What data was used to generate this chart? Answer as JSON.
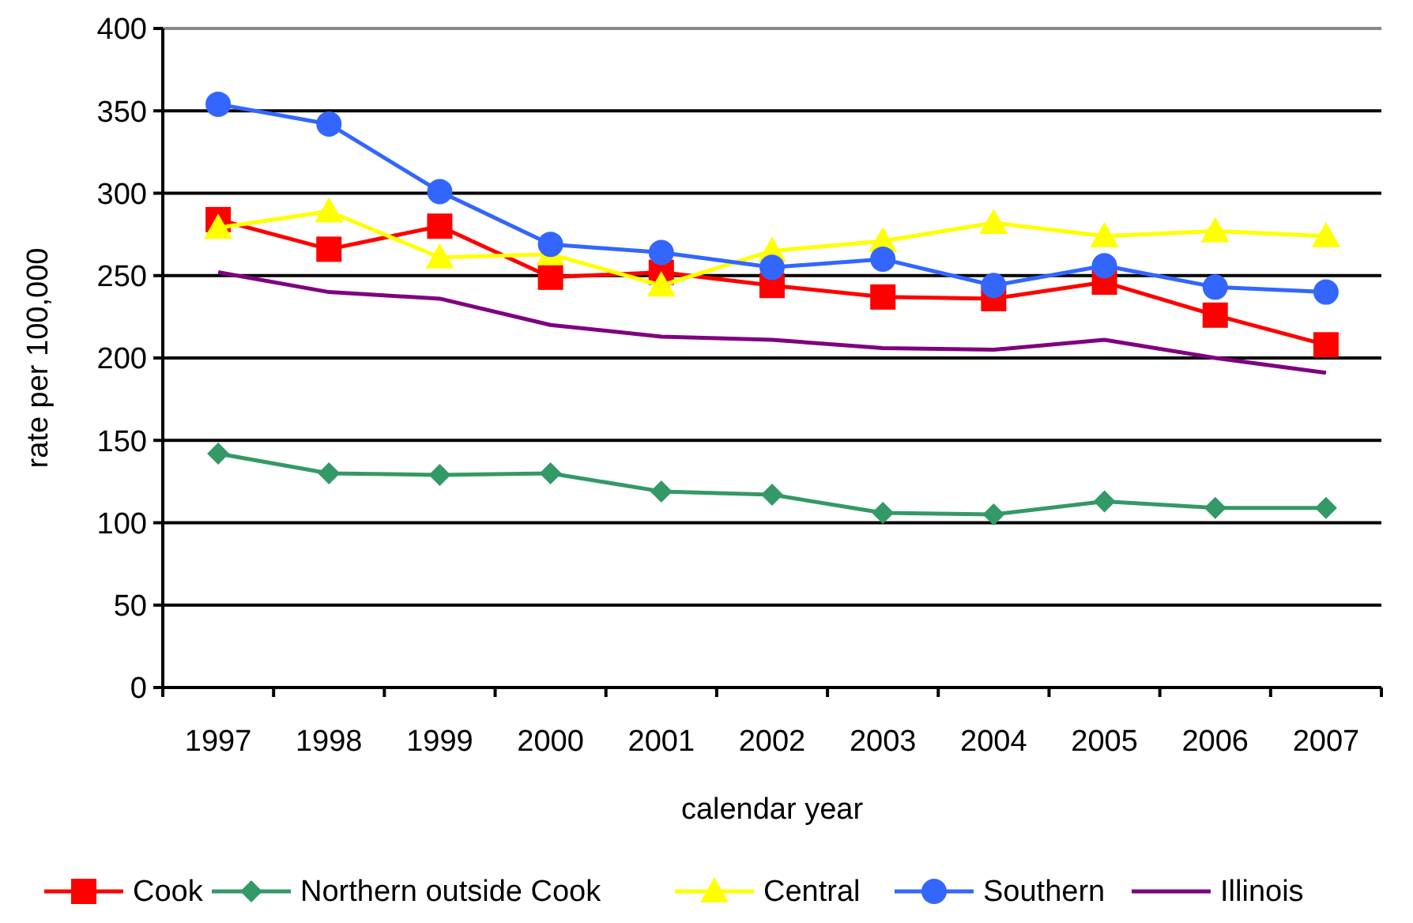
{
  "chart_data": {
    "type": "line",
    "xlabel": "calendar year",
    "ylabel": "rate per 100,000",
    "categories": [
      "1997",
      "1998",
      "1999",
      "2000",
      "2001",
      "2002",
      "2003",
      "2004",
      "2005",
      "2006",
      "2007"
    ],
    "ylim": [
      0,
      400
    ],
    "yticks": [
      0,
      50,
      100,
      150,
      200,
      250,
      300,
      350,
      400
    ],
    "grid": "y",
    "legend": "bottom",
    "series": [
      {
        "name": "Cook",
        "color": "#ff0000",
        "marker": "square",
        "values": [
          284,
          266,
          280,
          249,
          252,
          244,
          237,
          236,
          246,
          226,
          208
        ]
      },
      {
        "name": "Northern outside Cook",
        "color": "#339966",
        "marker": "diamond",
        "values": [
          142,
          130,
          129,
          130,
          119,
          117,
          106,
          105,
          113,
          109,
          109
        ]
      },
      {
        "name": "Central",
        "color": "#ffff00",
        "marker": "triangle",
        "values": [
          279,
          289,
          261,
          263,
          244,
          265,
          271,
          282,
          274,
          277,
          274
        ]
      },
      {
        "name": "Southern",
        "color": "#3366ff",
        "marker": "circle",
        "values": [
          354,
          342,
          301,
          269,
          264,
          255,
          260,
          244,
          256,
          243,
          240
        ]
      },
      {
        "name": "Illinois",
        "color": "#800080",
        "marker": "none",
        "values": [
          252,
          240,
          236,
          220,
          213,
          211,
          206,
          205,
          211,
          200,
          191
        ]
      }
    ]
  }
}
